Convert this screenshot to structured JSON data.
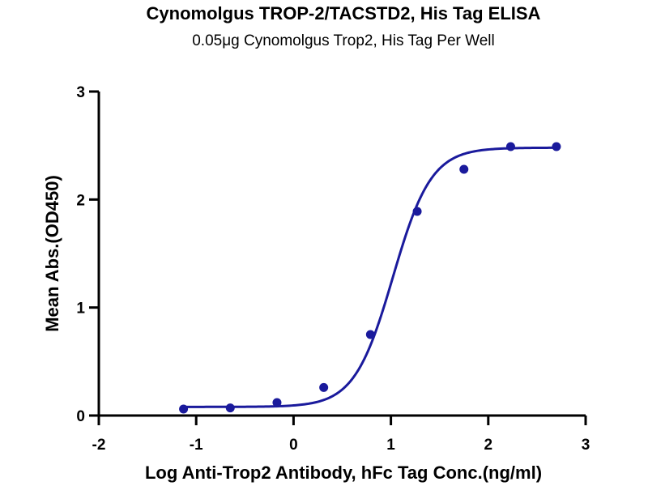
{
  "chart_data": {
    "type": "scatter",
    "title": "Cynomolgus TROP-2/TACSTD2, His Tag ELISA",
    "subtitle": "0.05μg Cynomolgus Trop2, His Tag Per Well",
    "xlabel": "Log Anti-Trop2 Antibody, hFc Tag Conc.(ng/ml)",
    "ylabel": "Mean Abs.(OD450)",
    "xlim": [
      -2,
      3
    ],
    "ylim": [
      0,
      3
    ],
    "xticks": [
      -2,
      -1,
      0,
      1,
      2,
      3
    ],
    "yticks": [
      0,
      1,
      2,
      3
    ],
    "grid": false,
    "colors": {
      "series": "#1a1a9c",
      "axis": "#000000"
    },
    "series": [
      {
        "points": [
          {
            "x": -1.13,
            "y": 0.06
          },
          {
            "x": -0.65,
            "y": 0.07
          },
          {
            "x": -0.17,
            "y": 0.12
          },
          {
            "x": 0.31,
            "y": 0.26
          },
          {
            "x": 0.79,
            "y": 0.75
          },
          {
            "x": 1.27,
            "y": 1.89
          },
          {
            "x": 1.75,
            "y": 2.28
          },
          {
            "x": 2.23,
            "y": 2.49
          },
          {
            "x": 2.7,
            "y": 2.49
          }
        ],
        "fit": {
          "model": "4PL",
          "bottom": 0.08,
          "top": 2.48,
          "logEC50": 1.02,
          "hill": 2.2,
          "x_range": [
            -1.13,
            2.7
          ]
        }
      }
    ]
  }
}
